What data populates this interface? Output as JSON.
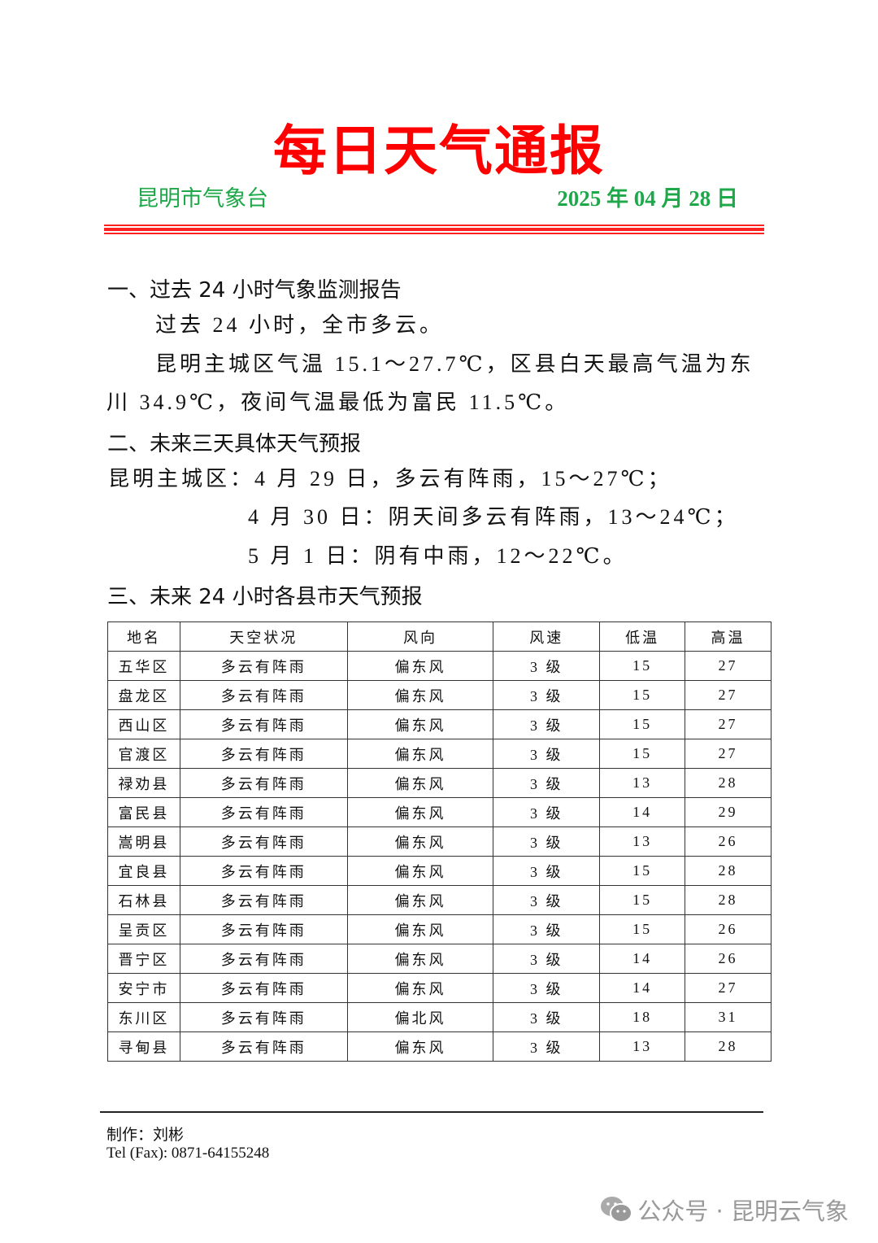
{
  "header": {
    "title": "每日天气通报",
    "org": "昆明市气象台",
    "date": "2025 年 04 月 28 日",
    "rule_color": "#ff2222",
    "title_color": "#ff0000",
    "accent_color": "#1fa84a"
  },
  "section1": {
    "heading": "一、过去 24 小时气象监测报告",
    "line1": "过去 24 小时，全市多云。",
    "line2": "昆明主城区气温 15.1～27.7℃，区县白天最高气温为东川 34.9℃，夜间气温最低为富民 11.5℃。"
  },
  "section2": {
    "heading": "二、未来三天具体天气预报",
    "line1": "昆明主城区：4 月 29 日，多云有阵雨，15～27℃；",
    "line2": "4 月 30 日：阴天间多云有阵雨，13～24℃；",
    "line3": "5 月 1 日：阴有中雨，12～22℃。"
  },
  "section3": {
    "heading": "三、未来 24 小时各县市天气预报"
  },
  "table": {
    "headers": [
      "地名",
      "天空状况",
      "风向",
      "风速",
      "低温",
      "高温"
    ],
    "rows": [
      [
        "五华区",
        "多云有阵雨",
        "偏东风",
        "3 级",
        "15",
        "27"
      ],
      [
        "盘龙区",
        "多云有阵雨",
        "偏东风",
        "3 级",
        "15",
        "27"
      ],
      [
        "西山区",
        "多云有阵雨",
        "偏东风",
        "3 级",
        "15",
        "27"
      ],
      [
        "官渡区",
        "多云有阵雨",
        "偏东风",
        "3 级",
        "15",
        "27"
      ],
      [
        "禄劝县",
        "多云有阵雨",
        "偏东风",
        "3 级",
        "13",
        "28"
      ],
      [
        "富民县",
        "多云有阵雨",
        "偏东风",
        "3 级",
        "14",
        "29"
      ],
      [
        "嵩明县",
        "多云有阵雨",
        "偏东风",
        "3 级",
        "13",
        "26"
      ],
      [
        "宜良县",
        "多云有阵雨",
        "偏东风",
        "3 级",
        "15",
        "28"
      ],
      [
        "石林县",
        "多云有阵雨",
        "偏东风",
        "3 级",
        "15",
        "28"
      ],
      [
        "呈贡区",
        "多云有阵雨",
        "偏东风",
        "3 级",
        "15",
        "26"
      ],
      [
        "晋宁区",
        "多云有阵雨",
        "偏东风",
        "3 级",
        "14",
        "26"
      ],
      [
        "安宁市",
        "多云有阵雨",
        "偏东风",
        "3 级",
        "14",
        "27"
      ],
      [
        "东川区",
        "多云有阵雨",
        "偏北风",
        "3 级",
        "18",
        "31"
      ],
      [
        "寻甸县",
        "多云有阵雨",
        "偏东风",
        "3 级",
        "13",
        "28"
      ]
    ]
  },
  "footer": {
    "author": "制作：刘彬",
    "tel": "Tel (Fax): 0871-64155248"
  },
  "watermark": {
    "icon": "wechat-icon",
    "text": "公众号 · 昆明云气象"
  }
}
